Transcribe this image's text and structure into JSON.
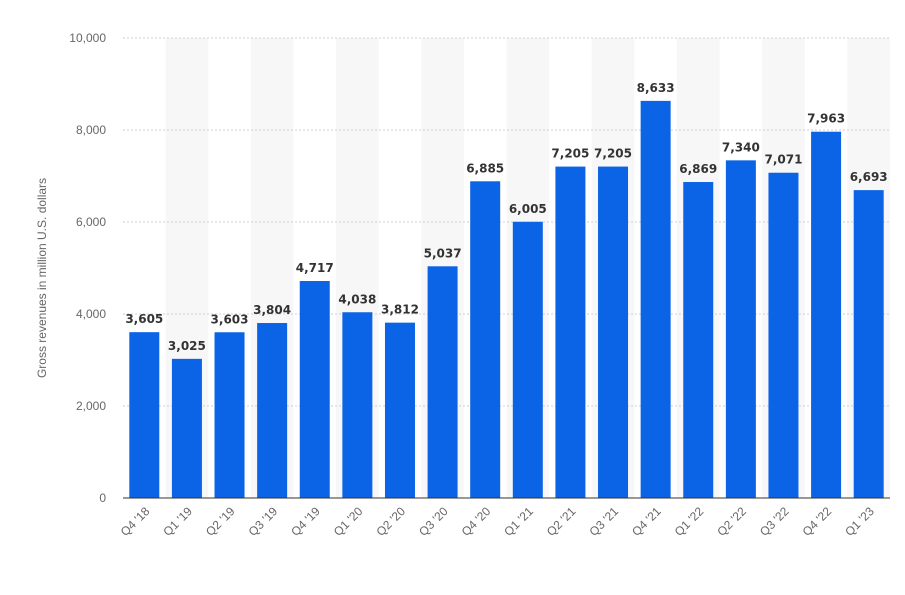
{
  "chart_data": {
    "type": "bar",
    "title": "",
    "xlabel": "",
    "ylabel": "Gross revenues in million U.S. dollars",
    "categories": [
      "Q4 '18",
      "Q1 '19",
      "Q2 '19",
      "Q3 '19",
      "Q4 '19",
      "Q1 '20",
      "Q2 '20",
      "Q3 '20",
      "Q4 '20",
      "Q1 '21",
      "Q2 '21",
      "Q3 '21",
      "Q4 '21",
      "Q1 '22",
      "Q2 '22",
      "Q3 '22",
      "Q4 '22",
      "Q1 '23"
    ],
    "values": [
      3605,
      3025,
      3603,
      3804,
      4717,
      4038,
      3812,
      5037,
      6885,
      6005,
      7205,
      7205,
      8633,
      6869,
      7340,
      7071,
      7963,
      6693
    ],
    "data_labels": [
      "3,605",
      "3,025",
      "3,603",
      "3,804",
      "4,717",
      "4,038",
      "3,812",
      "5,037",
      "6,885",
      "6,005",
      "7,205",
      "7,205",
      "8,633",
      "6,869",
      "7,340",
      "7,071",
      "7,963",
      "6,693"
    ],
    "ylim": [
      0,
      10000
    ],
    "yticks": [
      0,
      2000,
      4000,
      6000,
      8000,
      10000
    ],
    "ytick_labels": [
      "0",
      "2,000",
      "4,000",
      "6,000",
      "8,000",
      "10,000"
    ],
    "grid": true,
    "bar_color": "#0b63e5",
    "legend": "none"
  }
}
